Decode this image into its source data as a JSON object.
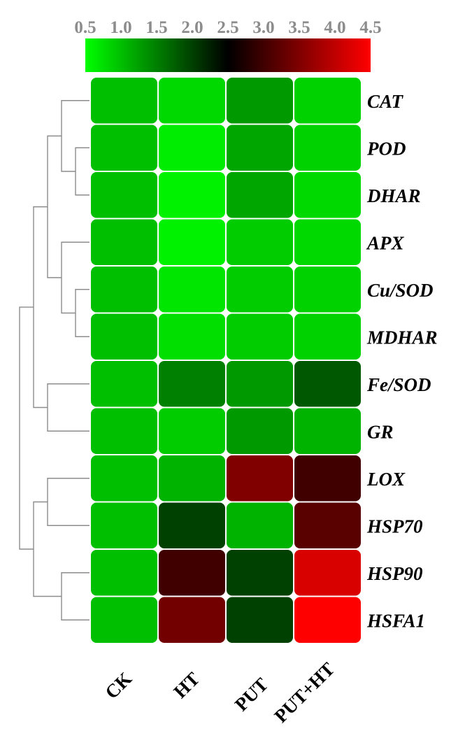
{
  "chart_data": {
    "type": "heatmap",
    "color_scale": {
      "min": 0.5,
      "max": 4.5,
      "ticks": [
        "0.5",
        "1.0",
        "1.5",
        "2.0",
        "2.5",
        "3.0",
        "3.5",
        "4.0",
        "4.5"
      ],
      "colors": {
        "low": "#00ff00",
        "mid": "#000000",
        "high": "#ff0000"
      },
      "mid_value": 2.5
    },
    "columns": [
      "CK",
      "HT",
      "PUT",
      "PUT+HT"
    ],
    "rows": [
      "CAT",
      "POD",
      "DHAR",
      "APX",
      "Cu/SOD",
      "MDHAR",
      "Fe/SOD",
      "GR",
      "LOX",
      "HSP70",
      "HSP90",
      "HSFA1"
    ],
    "values": [
      [
        1.0,
        0.8,
        1.3,
        0.85
      ],
      [
        1.0,
        0.65,
        1.2,
        0.85
      ],
      [
        1.0,
        0.6,
        1.2,
        0.8
      ],
      [
        1.0,
        0.6,
        0.9,
        0.8
      ],
      [
        1.0,
        0.7,
        0.9,
        0.85
      ],
      [
        1.0,
        0.75,
        0.9,
        0.85
      ],
      [
        1.0,
        1.5,
        1.3,
        1.8
      ],
      [
        1.0,
        0.9,
        1.3,
        1.1
      ],
      [
        1.0,
        1.1,
        3.5,
        3.0
      ],
      [
        1.0,
        2.0,
        1.1,
        3.2
      ],
      [
        1.0,
        3.0,
        2.0,
        4.2
      ],
      [
        1.0,
        3.4,
        2.0,
        4.5
      ]
    ],
    "dendrogram": "row clustering shown on left"
  }
}
